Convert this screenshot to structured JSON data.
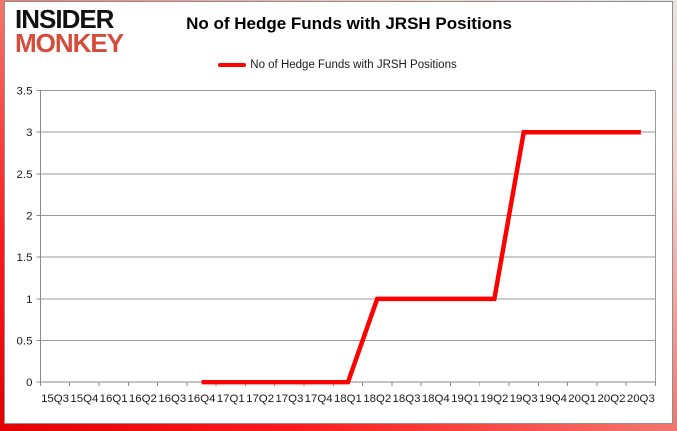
{
  "header": {
    "logo_line1": "INSIDER",
    "logo_line2": "MONKEY",
    "title": "No of Hedge Funds with JRSH Positions",
    "legend_label": "No of Hedge Funds with JRSH Positions"
  },
  "colors": {
    "line": "#ff0000",
    "logo_accent": "#d54c3b",
    "logo_dark": "#111111",
    "gridline": "#9a9a9a",
    "axis": "#8a8a8a",
    "tick_label": "#1a1a1a",
    "frame_glow": "#e30000"
  },
  "chart_data": {
    "type": "line",
    "title": "No of Hedge Funds with JRSH Positions",
    "categories": [
      "15Q3",
      "15Q4",
      "16Q1",
      "16Q2",
      "16Q3",
      "16Q4",
      "17Q1",
      "17Q2",
      "17Q3",
      "17Q4",
      "18Q1",
      "18Q2",
      "18Q3",
      "18Q4",
      "19Q1",
      "19Q2",
      "19Q3",
      "19Q4",
      "20Q1",
      "20Q2",
      "20Q3"
    ],
    "series": [
      {
        "name": "No of Hedge Funds with JRSH Positions",
        "values": [
          null,
          null,
          null,
          null,
          null,
          0,
          0,
          0,
          0,
          0,
          0,
          1,
          1,
          1,
          1,
          1,
          3,
          3,
          3,
          3,
          3
        ]
      }
    ],
    "xlabel": "",
    "ylabel": "",
    "ylim": [
      0,
      3.5
    ],
    "yticks": [
      0,
      0.5,
      1,
      1.5,
      2,
      2.5,
      3,
      3.5
    ],
    "grid": true,
    "legend_position": "top"
  }
}
